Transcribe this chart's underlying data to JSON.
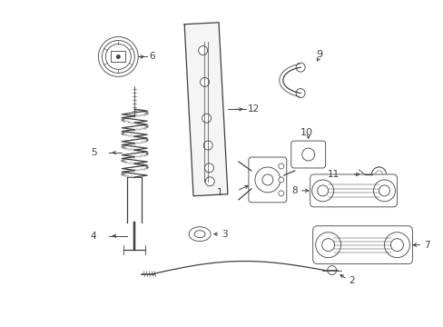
{
  "bg_color": "#ffffff",
  "line_color": "#404040",
  "label_color": "#111111",
  "fig_width": 4.89,
  "fig_height": 3.6,
  "dpi": 100
}
